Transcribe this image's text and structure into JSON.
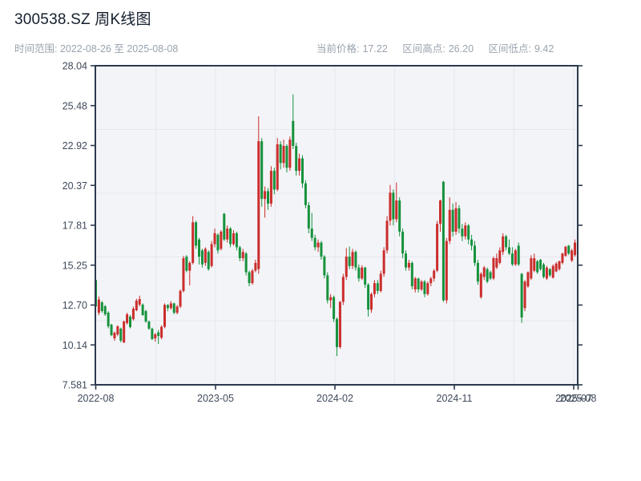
{
  "header": {
    "title": "300538.SZ 周K线图",
    "time_range": "时间范围: 2022-08-26 至 2025-08-08",
    "stats": [
      {
        "label": "当前价格:",
        "value": "17.22"
      },
      {
        "label": "区间高点:",
        "value": "26.20"
      },
      {
        "label": "区间低点:",
        "value": "9.42"
      }
    ]
  },
  "chart_data": {
    "type": "candlestick",
    "title": "300538.SZ 周K线图",
    "frequency": "weekly",
    "start_date": "2022-08-26",
    "end_date": "2025-08-08",
    "current_price": 17.22,
    "range_high": 26.2,
    "range_low": 9.42,
    "grid": "on",
    "y_axis": {
      "min": 7.581,
      "max": 28.04,
      "tick_labels": [
        "28.04",
        "25.48",
        "22.92",
        "20.37",
        "17.81",
        "15.25",
        "12.70",
        "10.14",
        "7.581"
      ]
    },
    "x_axis": {
      "tick_labels": [
        "2022-08",
        "2023-05",
        "2024-02",
        "2024-11",
        "2025-07",
        "2025-08"
      ],
      "tick_week_positions": [
        0,
        38.24,
        76.36,
        114.48,
        152.6,
        154
      ]
    },
    "colors": {
      "up": "#cb2c2c",
      "down": "#17923c",
      "plot_background": "#f2f4f7",
      "grid": "#e4e7ed",
      "frame": "#2b3a4d",
      "tick_text": "#3f4a5a"
    },
    "ohlc": [
      [
        14.3,
        14.45,
        12.4,
        12.6
      ],
      [
        12.2,
        13.25,
        12.05,
        13.05
      ],
      [
        12.87,
        12.95,
        12.2,
        12.31
      ],
      [
        12.62,
        12.7,
        12.0,
        12.1
      ],
      [
        12.21,
        12.3,
        11.2,
        11.33
      ],
      [
        11.43,
        11.5,
        10.7,
        10.76
      ],
      [
        10.56,
        11.0,
        10.4,
        10.92
      ],
      [
        10.81,
        11.4,
        10.7,
        11.33
      ],
      [
        11.18,
        11.25,
        10.3,
        10.41
      ],
      [
        10.3,
        11.7,
        10.25,
        11.64
      ],
      [
        11.54,
        12.2,
        11.45,
        12.1
      ],
      [
        11.95,
        12.05,
        11.2,
        11.28
      ],
      [
        11.79,
        12.6,
        11.7,
        12.46
      ],
      [
        12.36,
        13.1,
        12.3,
        12.98
      ],
      [
        12.72,
        13.3,
        12.6,
        13.08
      ],
      [
        12.72,
        12.8,
        12.0,
        12.05
      ],
      [
        12.31,
        12.4,
        11.55,
        11.64
      ],
      [
        11.64,
        11.7,
        11.1,
        11.18
      ],
      [
        11.18,
        11.25,
        10.45,
        10.51
      ],
      [
        10.56,
        10.9,
        10.35,
        10.82
      ],
      [
        10.95,
        11.1,
        10.2,
        10.71
      ],
      [
        10.6,
        11.4,
        10.5,
        11.3
      ],
      [
        11.3,
        12.8,
        11.2,
        12.7
      ],
      [
        12.7,
        12.75,
        12.3,
        12.5
      ],
      [
        12.5,
        12.95,
        12.4,
        12.8
      ],
      [
        12.8,
        12.85,
        12.1,
        12.2
      ],
      [
        12.2,
        12.7,
        12.1,
        12.6
      ],
      [
        12.6,
        13.7,
        12.5,
        13.6
      ],
      [
        13.6,
        15.85,
        13.5,
        15.7
      ],
      [
        15.8,
        15.9,
        14.8,
        14.9
      ],
      [
        14.9,
        15.5,
        13.95,
        15.4
      ],
      [
        15.4,
        18.4,
        15.3,
        18.0
      ],
      [
        18.0,
        18.1,
        16.3,
        16.5
      ],
      [
        16.9,
        17.0,
        15.3,
        15.8
      ],
      [
        16.2,
        16.3,
        15.1,
        15.3
      ],
      [
        15.4,
        16.4,
        15.2,
        16.3
      ],
      [
        16.1,
        16.2,
        14.9,
        15.0
      ],
      [
        15.2,
        16.8,
        15.1,
        16.6
      ],
      [
        16.6,
        17.6,
        16.4,
        17.3
      ],
      [
        17.2,
        17.3,
        16.0,
        16.2
      ],
      [
        16.3,
        17.5,
        16.2,
        17.4
      ],
      [
        18.55,
        18.6,
        16.8,
        16.9
      ],
      [
        16.9,
        17.8,
        16.7,
        17.6
      ],
      [
        17.6,
        17.7,
        16.4,
        16.6
      ],
      [
        16.6,
        17.5,
        16.5,
        17.3
      ],
      [
        17.3,
        17.4,
        16.2,
        16.4
      ],
      [
        16.4,
        16.5,
        15.5,
        15.7
      ],
      [
        15.7,
        16.3,
        15.5,
        16.1
      ],
      [
        16.0,
        16.1,
        14.6,
        14.8
      ],
      [
        14.8,
        14.9,
        13.9,
        14.1
      ],
      [
        14.1,
        15.0,
        14.0,
        14.9
      ],
      [
        14.9,
        15.6,
        14.8,
        15.4
      ],
      [
        15.0,
        24.8,
        14.7,
        23.2
      ],
      [
        23.2,
        23.4,
        19.0,
        19.5
      ],
      [
        19.5,
        20.3,
        18.3,
        20.0
      ],
      [
        20.0,
        20.2,
        18.8,
        19.2
      ],
      [
        19.2,
        21.6,
        19.0,
        21.3
      ],
      [
        21.3,
        21.5,
        19.8,
        20.1
      ],
      [
        20.1,
        23.4,
        20.0,
        23.0
      ],
      [
        23.0,
        23.2,
        21.4,
        21.8
      ],
      [
        21.8,
        23.3,
        21.5,
        22.9
      ],
      [
        22.9,
        23.0,
        21.2,
        21.5
      ],
      [
        21.5,
        23.5,
        21.3,
        23.3
      ],
      [
        24.5,
        26.2,
        22.7,
        22.9
      ],
      [
        22.9,
        23.1,
        21.0,
        21.3
      ],
      [
        21.3,
        22.4,
        21.0,
        22.1
      ],
      [
        22.1,
        22.3,
        20.2,
        20.5
      ],
      [
        20.5,
        20.7,
        18.9,
        19.1
      ],
      [
        19.1,
        19.3,
        17.3,
        17.6
      ],
      [
        17.6,
        18.6,
        16.8,
        17.0
      ],
      [
        17.0,
        17.2,
        16.2,
        16.4
      ],
      [
        16.4,
        16.9,
        16.1,
        16.7
      ],
      [
        16.7,
        16.8,
        15.6,
        15.8
      ],
      [
        15.8,
        15.9,
        14.4,
        14.6
      ],
      [
        14.6,
        14.8,
        12.8,
        13.0
      ],
      [
        13.0,
        13.4,
        12.5,
        13.2
      ],
      [
        13.2,
        13.3,
        11.6,
        11.8
      ],
      [
        11.8,
        11.9,
        9.42,
        10.0
      ],
      [
        10.0,
        12.95,
        9.9,
        12.9
      ],
      [
        12.9,
        14.7,
        12.7,
        14.5
      ],
      [
        14.5,
        16.35,
        14.3,
        15.8
      ],
      [
        15.8,
        16.45,
        15.0,
        15.2
      ],
      [
        15.2,
        16.3,
        15.0,
        16.1
      ],
      [
        16.1,
        16.2,
        14.9,
        15.1
      ],
      [
        15.1,
        15.3,
        14.2,
        14.4
      ],
      [
        14.4,
        15.25,
        14.3,
        15.1
      ],
      [
        15.1,
        15.15,
        13.8,
        14.0
      ],
      [
        14.0,
        14.1,
        11.95,
        12.4
      ],
      [
        12.4,
        13.5,
        12.2,
        13.4
      ],
      [
        13.4,
        14.3,
        13.2,
        14.1
      ],
      [
        14.1,
        14.3,
        13.4,
        13.6
      ],
      [
        13.6,
        14.9,
        13.5,
        14.7
      ],
      [
        14.7,
        16.4,
        14.5,
        16.2
      ],
      [
        16.2,
        18.4,
        16.0,
        18.1
      ],
      [
        18.1,
        20.4,
        17.8,
        19.9
      ],
      [
        19.9,
        20.1,
        17.8,
        18.2
      ],
      [
        18.2,
        20.55,
        18.0,
        19.4
      ],
      [
        19.4,
        19.6,
        17.1,
        17.4
      ],
      [
        17.4,
        17.6,
        15.7,
        16.0
      ],
      [
        16.0,
        16.2,
        14.9,
        15.1
      ],
      [
        15.1,
        15.6,
        14.9,
        15.4
      ],
      [
        15.4,
        15.5,
        13.7,
        13.9
      ],
      [
        13.7,
        14.5,
        13.5,
        14.4
      ],
      [
        14.4,
        14.45,
        13.5,
        13.7
      ],
      [
        13.7,
        14.3,
        13.6,
        14.2
      ],
      [
        14.2,
        14.3,
        13.2,
        13.4
      ],
      [
        13.4,
        14.2,
        13.3,
        14.1
      ],
      [
        14.1,
        14.5,
        13.9,
        14.4
      ],
      [
        14.4,
        15.0,
        14.2,
        14.9
      ],
      [
        14.9,
        18.1,
        14.8,
        17.9
      ],
      [
        17.9,
        19.45,
        17.4,
        19.4
      ],
      [
        20.6,
        20.65,
        12.9,
        13.0
      ],
      [
        13.0,
        17.0,
        12.8,
        16.8
      ],
      [
        16.8,
        19.6,
        16.6,
        18.8
      ],
      [
        18.8,
        19.2,
        17.1,
        17.4
      ],
      [
        17.4,
        19.3,
        17.2,
        18.9
      ],
      [
        18.9,
        19.1,
        17.3,
        17.6
      ],
      [
        17.6,
        17.9,
        16.8,
        17.1
      ],
      [
        17.1,
        18.0,
        16.9,
        17.8
      ],
      [
        17.8,
        17.9,
        16.6,
        16.9
      ],
      [
        16.9,
        17.2,
        16.2,
        16.5
      ],
      [
        16.5,
        16.8,
        15.2,
        15.4
      ],
      [
        15.4,
        15.6,
        14.0,
        14.2
      ],
      [
        13.2,
        14.8,
        13.1,
        14.7
      ],
      [
        14.5,
        15.2,
        14.3,
        15.1
      ],
      [
        15.0,
        15.1,
        14.1,
        14.2
      ],
      [
        14.8,
        14.9,
        14.3,
        14.4
      ],
      [
        14.4,
        15.8,
        14.3,
        15.7
      ],
      [
        15.1,
        16.0,
        15.0,
        15.7
      ],
      [
        15.4,
        16.4,
        15.3,
        16.2
      ],
      [
        16.1,
        17.3,
        15.9,
        17.1
      ],
      [
        17.1,
        17.2,
        16.2,
        16.4
      ],
      [
        16.4,
        16.9,
        15.9,
        16.0
      ],
      [
        16.0,
        16.4,
        15.2,
        15.3
      ],
      [
        15.3,
        16.3,
        15.2,
        16.2
      ],
      [
        16.5,
        16.7,
        15.2,
        15.3
      ],
      [
        14.7,
        14.75,
        11.55,
        11.9
      ],
      [
        12.5,
        14.3,
        12.3,
        14.2
      ],
      [
        13.9,
        14.85,
        13.8,
        14.8
      ],
      [
        14.4,
        15.9,
        14.3,
        15.7
      ],
      [
        14.9,
        16.0,
        14.8,
        15.7
      ],
      [
        15.5,
        15.6,
        14.7,
        14.8
      ],
      [
        15.6,
        15.65,
        14.9,
        15.0
      ],
      [
        15.3,
        15.4,
        14.4,
        14.5
      ],
      [
        14.4,
        15.2,
        14.3,
        15.1
      ],
      [
        15.0,
        15.05,
        14.5,
        14.6
      ],
      [
        14.45,
        15.3,
        14.4,
        15.2
      ],
      [
        14.85,
        15.45,
        14.8,
        15.35
      ],
      [
        15.0,
        15.55,
        14.9,
        15.5
      ],
      [
        15.4,
        16.05,
        15.3,
        16.0
      ],
      [
        15.85,
        16.5,
        15.8,
        16.43
      ],
      [
        16.5,
        16.55,
        15.9,
        16.0
      ],
      [
        15.55,
        16.3,
        15.45,
        16.2
      ],
      [
        15.9,
        16.9,
        15.8,
        16.7
      ],
      [
        16.4,
        17.8,
        16.2,
        17.22
      ]
    ]
  }
}
